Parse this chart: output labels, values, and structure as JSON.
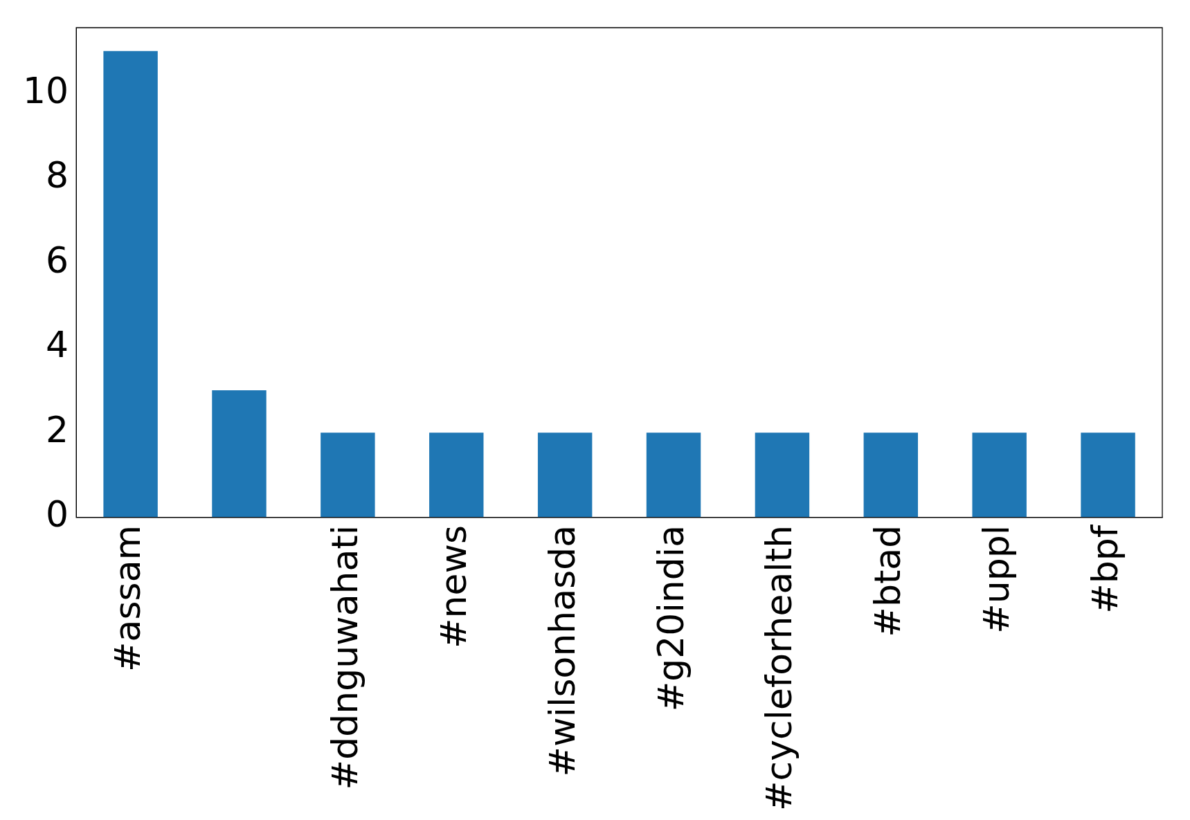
{
  "chart_data": {
    "type": "bar",
    "categories": [
      "#assam",
      null,
      "#ddnguwahati",
      "#news",
      "#wilsonhasda",
      "#g20india",
      "#cycleforhealth",
      "#btad",
      "#uppl",
      "#bpf"
    ],
    "values": [
      11,
      3,
      2,
      2,
      2,
      2,
      2,
      2,
      2,
      2
    ],
    "color": "#1f77b4",
    "ylim": [
      0,
      11.55
    ],
    "yticks": [
      0,
      2,
      4,
      6,
      8,
      10
    ],
    "grid": false,
    "legend": false
  }
}
